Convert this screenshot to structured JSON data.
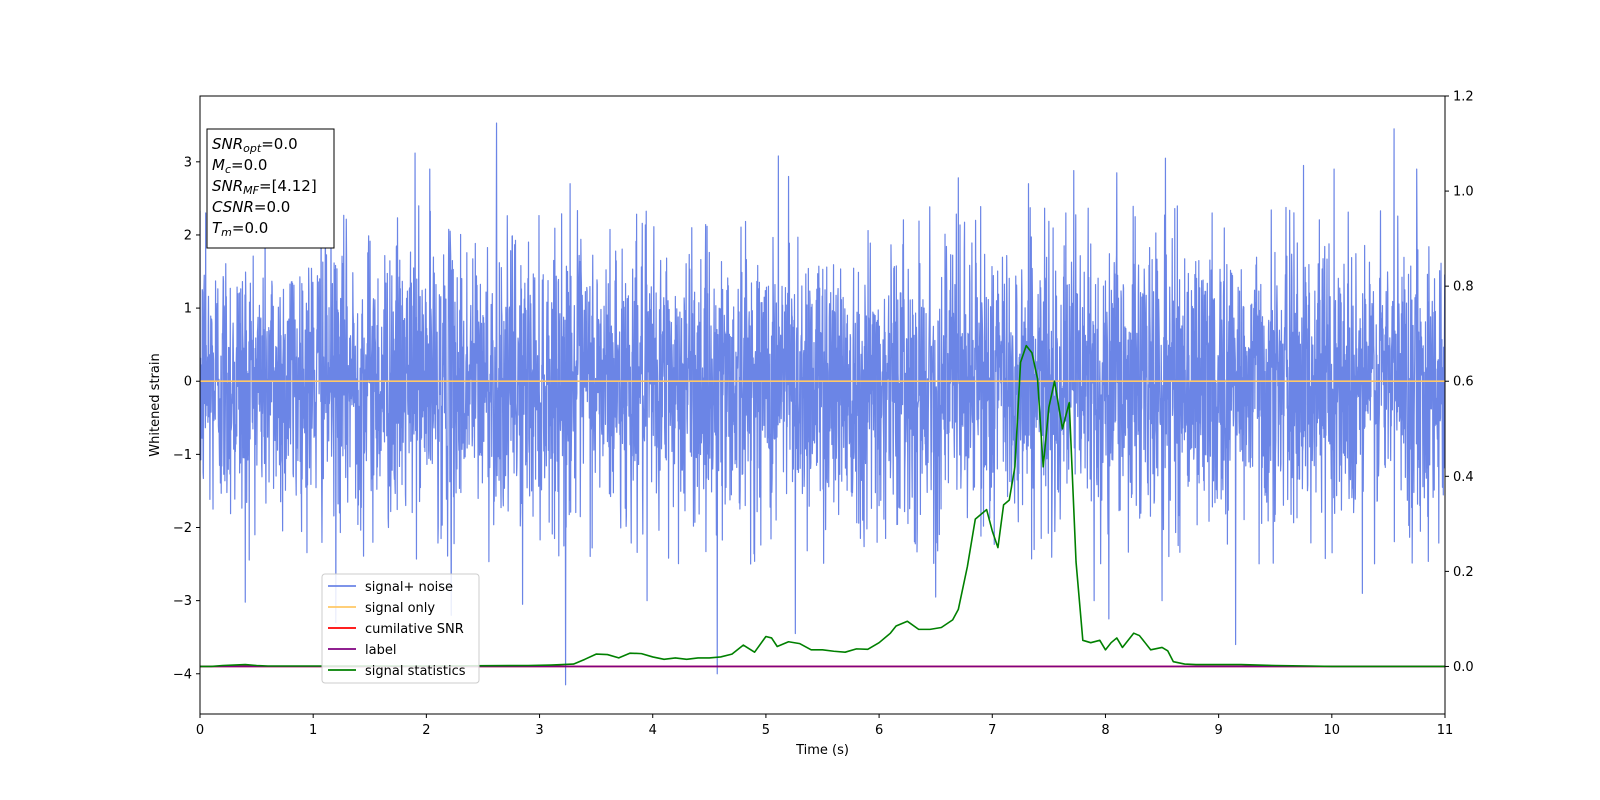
{
  "chart_data": {
    "type": "line",
    "xlabel": "Time (s)",
    "ylabel": "Whitened strain",
    "xlim": [
      0,
      11
    ],
    "ylim": [
      -4.55,
      3.9
    ],
    "y2lim": [
      -0.1,
      1.2
    ],
    "x_ticks": [
      0,
      1,
      2,
      3,
      4,
      5,
      6,
      7,
      8,
      9,
      10,
      11
    ],
    "y_ticks": [
      -4,
      -3,
      -2,
      -1,
      0,
      1,
      2,
      3
    ],
    "y2_ticks": [
      0.0,
      0.2,
      0.4,
      0.6,
      0.8,
      1.0,
      1.2
    ],
    "legend_position": "lower-left",
    "grid": false,
    "legend": [
      {
        "label": "signal+ noise",
        "color": "#6b85e6"
      },
      {
        "label": "signal only",
        "color": "#ffc866"
      },
      {
        "label": "cumilative SNR",
        "color": "#ff0000"
      },
      {
        "label": "label",
        "color": "#800080"
      },
      {
        "label": "signal statistics",
        "color": "#008000"
      }
    ],
    "annotation_lines": [
      {
        "key": "SNR",
        "sub": "opt",
        "value": "=0.0"
      },
      {
        "key": "M",
        "sub": "c",
        "value": "=0.0"
      },
      {
        "key": "SNR",
        "sub": "MF",
        "value": "=[4.12]"
      },
      {
        "key": "CSNR",
        "sub": "",
        "value": "=0.0"
      },
      {
        "key": "T",
        "sub": "m",
        "value": "=0.0"
      }
    ],
    "series": [
      {
        "name": "signal+ noise",
        "axis": "left",
        "color": "#6b85e6",
        "noise_sigma": 0.95,
        "peaks": [
          {
            "x": 0.4,
            "y": -3.02
          },
          {
            "x": 0.05,
            "y": 2.3
          },
          {
            "x": 1.07,
            "y": 2.7
          },
          {
            "x": 1.2,
            "y": -3.3
          },
          {
            "x": 1.9,
            "y": 3.12
          },
          {
            "x": 2.03,
            "y": 2.9
          },
          {
            "x": 2.22,
            "y": -3.2
          },
          {
            "x": 2.62,
            "y": 3.53
          },
          {
            "x": 2.85,
            "y": -3.05
          },
          {
            "x": 3.23,
            "y": -4.15
          },
          {
            "x": 3.27,
            "y": 2.7
          },
          {
            "x": 3.95,
            "y": -3.0
          },
          {
            "x": 4.57,
            "y": -4.0
          },
          {
            "x": 5.11,
            "y": 3.08
          },
          {
            "x": 5.26,
            "y": -3.45
          },
          {
            "x": 5.2,
            "y": 2.8
          },
          {
            "x": 6.7,
            "y": 2.78
          },
          {
            "x": 6.5,
            "y": -2.95
          },
          {
            "x": 7.32,
            "y": 2.7
          },
          {
            "x": 7.72,
            "y": 2.88
          },
          {
            "x": 7.9,
            "y": -3.0
          },
          {
            "x": 8.03,
            "y": -3.25
          },
          {
            "x": 8.1,
            "y": 2.85
          },
          {
            "x": 8.53,
            "y": 3.05
          },
          {
            "x": 8.5,
            "y": -3.0
          },
          {
            "x": 9.15,
            "y": -3.6
          },
          {
            "x": 9.75,
            "y": 2.95
          },
          {
            "x": 10.02,
            "y": 2.9
          },
          {
            "x": 10.27,
            "y": -2.9
          },
          {
            "x": 10.55,
            "y": 3.45
          },
          {
            "x": 10.75,
            "y": 2.9
          }
        ]
      },
      {
        "name": "signal only",
        "axis": "left",
        "color": "#ffc866",
        "x": [
          0,
          11
        ],
        "y": [
          0,
          0
        ]
      },
      {
        "name": "cumilative SNR",
        "axis": "right",
        "color": "#ff0000",
        "x": [
          0,
          11
        ],
        "y": [
          0,
          0
        ]
      },
      {
        "name": "label",
        "axis": "right",
        "color": "#800080",
        "x": [
          0,
          11
        ],
        "y": [
          0,
          0
        ]
      },
      {
        "name": "signal statistics",
        "axis": "right",
        "color": "#008000",
        "x": [
          0,
          0.1,
          0.2,
          0.3,
          0.4,
          0.5,
          0.6,
          1.0,
          2.0,
          2.9,
          3.1,
          3.3,
          3.4,
          3.5,
          3.6,
          3.7,
          3.8,
          3.9,
          4.0,
          4.1,
          4.2,
          4.3,
          4.4,
          4.5,
          4.6,
          4.7,
          4.8,
          4.9,
          5.0,
          5.05,
          5.1,
          5.2,
          5.3,
          5.4,
          5.5,
          5.6,
          5.7,
          5.8,
          5.9,
          6.0,
          6.1,
          6.15,
          6.25,
          6.35,
          6.45,
          6.55,
          6.65,
          6.7,
          6.78,
          6.85,
          6.9,
          6.95,
          7.0,
          7.05,
          7.1,
          7.15,
          7.2,
          7.25,
          7.3,
          7.35,
          7.4,
          7.45,
          7.5,
          7.55,
          7.62,
          7.68,
          7.74,
          7.8,
          7.87,
          7.95,
          8.0,
          8.05,
          8.1,
          8.15,
          8.25,
          8.3,
          8.35,
          8.4,
          8.5,
          8.55,
          8.6,
          8.7,
          8.8,
          9.0,
          9.2,
          9.5,
          9.8,
          10.0,
          10.5,
          11.0
        ],
        "y": [
          0.0,
          0.0,
          0.002,
          0.003,
          0.004,
          0.002,
          0.001,
          0.001,
          0.001,
          0.002,
          0.003,
          0.005,
          0.015,
          0.026,
          0.025,
          0.018,
          0.028,
          0.027,
          0.02,
          0.015,
          0.018,
          0.015,
          0.018,
          0.018,
          0.02,
          0.026,
          0.045,
          0.03,
          0.063,
          0.06,
          0.042,
          0.052,
          0.048,
          0.035,
          0.035,
          0.032,
          0.03,
          0.037,
          0.036,
          0.05,
          0.07,
          0.085,
          0.095,
          0.078,
          0.078,
          0.082,
          0.098,
          0.12,
          0.21,
          0.31,
          0.32,
          0.33,
          0.285,
          0.25,
          0.34,
          0.35,
          0.42,
          0.64,
          0.675,
          0.66,
          0.605,
          0.42,
          0.545,
          0.6,
          0.5,
          0.555,
          0.22,
          0.055,
          0.05,
          0.055,
          0.035,
          0.05,
          0.06,
          0.04,
          0.07,
          0.065,
          0.05,
          0.035,
          0.04,
          0.033,
          0.01,
          0.005,
          0.004,
          0.004,
          0.004,
          0.002,
          0.001,
          0.0,
          0.0,
          0.0
        ]
      }
    ]
  }
}
